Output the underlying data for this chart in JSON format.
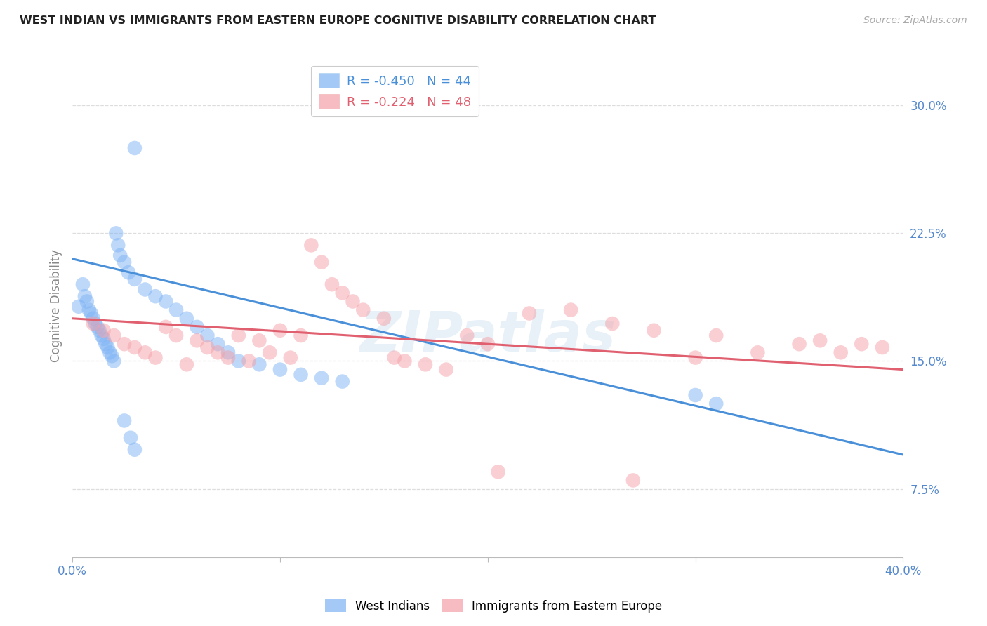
{
  "title": "WEST INDIAN VS IMMIGRANTS FROM EASTERN EUROPE COGNITIVE DISABILITY CORRELATION CHART",
  "source": "Source: ZipAtlas.com",
  "ylabel": "Cognitive Disability",
  "xlim": [
    0.0,
    40.0
  ],
  "ylim": [
    3.5,
    33.0
  ],
  "blue_color": "#7EB3F5",
  "pink_color": "#F5A0A8",
  "blue_line_color": "#4A90D9",
  "pink_line_color": "#E06070",
  "legend_blue_r": "R = -0.450",
  "legend_blue_n": "N = 44",
  "legend_pink_r": "R = -0.224",
  "legend_pink_n": "N = 48",
  "watermark": "ZIPatlas",
  "blue_scatter": [
    [
      0.3,
      18.2
    ],
    [
      0.5,
      19.5
    ],
    [
      0.6,
      18.8
    ],
    [
      0.7,
      18.5
    ],
    [
      0.8,
      18.0
    ],
    [
      0.9,
      17.8
    ],
    [
      1.0,
      17.5
    ],
    [
      1.1,
      17.2
    ],
    [
      1.2,
      17.0
    ],
    [
      1.3,
      16.8
    ],
    [
      1.4,
      16.5
    ],
    [
      1.5,
      16.3
    ],
    [
      1.6,
      16.0
    ],
    [
      1.7,
      15.8
    ],
    [
      1.8,
      15.5
    ],
    [
      1.9,
      15.3
    ],
    [
      2.0,
      15.0
    ],
    [
      2.1,
      22.5
    ],
    [
      2.2,
      21.8
    ],
    [
      2.3,
      21.2
    ],
    [
      2.5,
      20.8
    ],
    [
      2.7,
      20.2
    ],
    [
      3.0,
      19.8
    ],
    [
      3.5,
      19.2
    ],
    [
      4.0,
      18.8
    ],
    [
      4.5,
      18.5
    ],
    [
      5.0,
      18.0
    ],
    [
      5.5,
      17.5
    ],
    [
      6.0,
      17.0
    ],
    [
      6.5,
      16.5
    ],
    [
      7.0,
      16.0
    ],
    [
      7.5,
      15.5
    ],
    [
      8.0,
      15.0
    ],
    [
      9.0,
      14.8
    ],
    [
      10.0,
      14.5
    ],
    [
      11.0,
      14.2
    ],
    [
      12.0,
      14.0
    ],
    [
      13.0,
      13.8
    ],
    [
      3.0,
      27.5
    ],
    [
      30.0,
      13.0
    ],
    [
      31.0,
      12.5
    ],
    [
      2.5,
      11.5
    ],
    [
      2.8,
      10.5
    ],
    [
      3.0,
      9.8
    ]
  ],
  "pink_scatter": [
    [
      1.0,
      17.2
    ],
    [
      1.5,
      16.8
    ],
    [
      2.0,
      16.5
    ],
    [
      2.5,
      16.0
    ],
    [
      3.0,
      15.8
    ],
    [
      3.5,
      15.5
    ],
    [
      4.0,
      15.2
    ],
    [
      4.5,
      17.0
    ],
    [
      5.0,
      16.5
    ],
    [
      5.5,
      14.8
    ],
    [
      6.0,
      16.2
    ],
    [
      6.5,
      15.8
    ],
    [
      7.0,
      15.5
    ],
    [
      7.5,
      15.2
    ],
    [
      8.0,
      16.5
    ],
    [
      8.5,
      15.0
    ],
    [
      9.0,
      16.2
    ],
    [
      9.5,
      15.5
    ],
    [
      10.0,
      16.8
    ],
    [
      10.5,
      15.2
    ],
    [
      11.0,
      16.5
    ],
    [
      11.5,
      21.8
    ],
    [
      12.0,
      20.8
    ],
    [
      12.5,
      19.5
    ],
    [
      13.0,
      19.0
    ],
    [
      13.5,
      18.5
    ],
    [
      14.0,
      18.0
    ],
    [
      15.0,
      17.5
    ],
    [
      15.5,
      15.2
    ],
    [
      16.0,
      15.0
    ],
    [
      17.0,
      14.8
    ],
    [
      18.0,
      14.5
    ],
    [
      19.0,
      16.5
    ],
    [
      20.0,
      16.0
    ],
    [
      22.0,
      17.8
    ],
    [
      24.0,
      18.0
    ],
    [
      26.0,
      17.2
    ],
    [
      28.0,
      16.8
    ],
    [
      30.0,
      15.2
    ],
    [
      31.0,
      16.5
    ],
    [
      33.0,
      15.5
    ],
    [
      35.0,
      16.0
    ],
    [
      36.0,
      16.2
    ],
    [
      37.0,
      15.5
    ],
    [
      38.0,
      16.0
    ],
    [
      39.0,
      15.8
    ],
    [
      20.5,
      8.5
    ],
    [
      27.0,
      8.0
    ]
  ],
  "blue_line_x": [
    0.0,
    40.0
  ],
  "blue_line_y": [
    21.0,
    9.5
  ],
  "pink_line_x": [
    0.0,
    40.0
  ],
  "pink_line_y": [
    17.5,
    14.5
  ],
  "yticks": [
    7.5,
    15.0,
    22.5,
    30.0
  ],
  "xtick_labels_show": [
    "0.0%",
    "40.0%"
  ],
  "grid_color": "#dddddd",
  "title_color": "#222222",
  "tick_label_color": "#5588CC",
  "ylabel_color": "#888888"
}
